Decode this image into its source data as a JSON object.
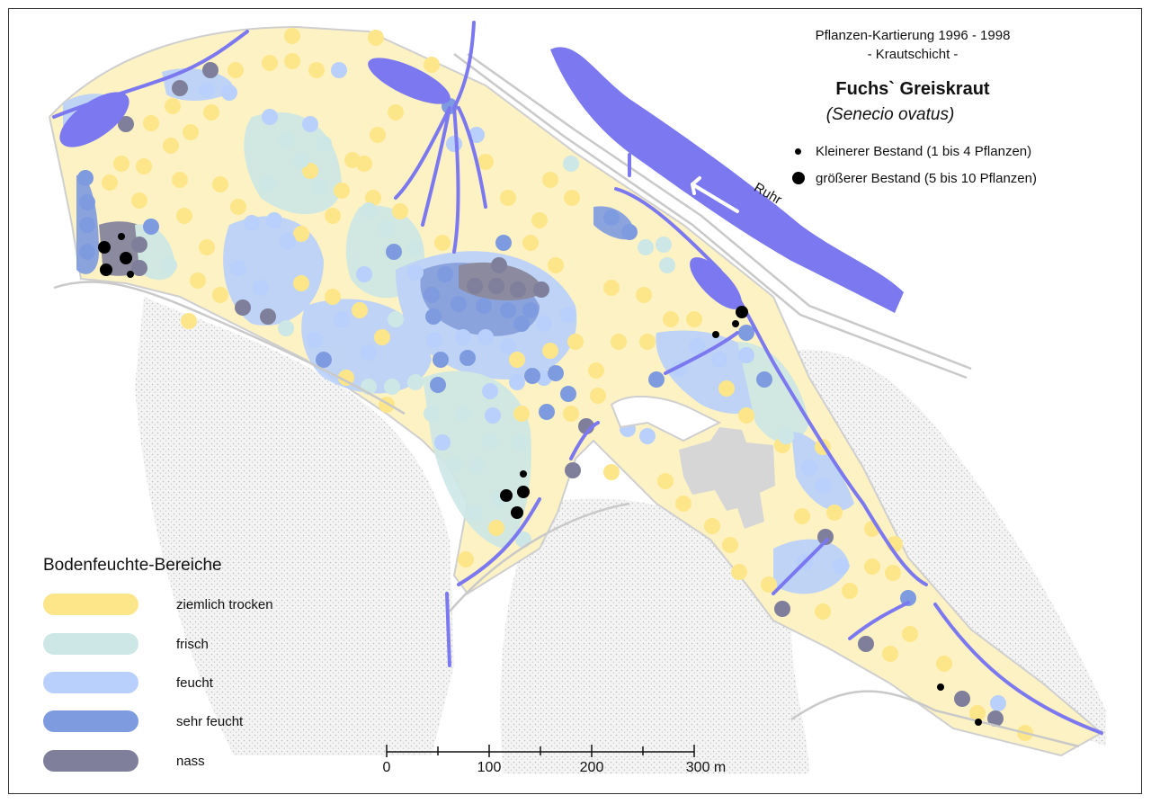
{
  "title": {
    "line1": "Pflanzen-Kartierung 1996 - 1998",
    "line2": "- Krautschicht -",
    "species_common": "Fuchs` Greiskraut",
    "species_latin": "(Senecio ovatus)"
  },
  "population_legend": [
    {
      "label": "Kleinerer Bestand (1 bis 4 Pflanzen)",
      "marker": "small-black-dot"
    },
    {
      "label": "größerer Bestand (5 bis 10 Pflanzen)",
      "marker": "large-black-dot"
    }
  ],
  "moisture_legend": {
    "title": "Bodenfeuchte-Bereiche",
    "items": [
      {
        "label": "ziemlich trocken",
        "color": "#fde68a"
      },
      {
        "label": "frisch",
        "color": "#cce7e5"
      },
      {
        "label": "feucht",
        "color": "#b8d0fb"
      },
      {
        "label": "sehr feucht",
        "color": "#7f9be0"
      },
      {
        "label": "nass",
        "color": "#7f7f9b"
      }
    ]
  },
  "river_label": "Ruhr",
  "scale_bar": {
    "unit": "m",
    "labels": [
      "0",
      "100",
      "200",
      "300 m"
    ]
  },
  "colors": {
    "water": "#7b78f0",
    "park_fill": "#fdf2c4",
    "building": "#d6d6d6",
    "stipple": "#cfcfcf"
  }
}
